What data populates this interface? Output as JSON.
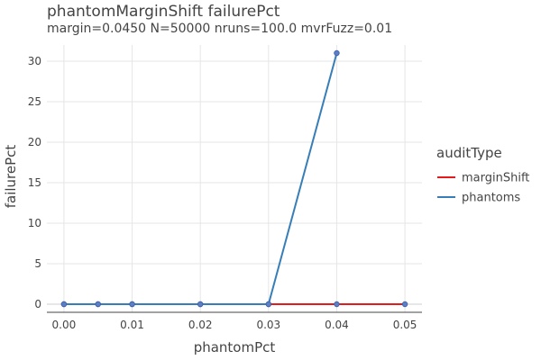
{
  "chart_data": {
    "type": "line",
    "title": "phantomMarginShift failurePct",
    "subtitle": "margin=0.0450 N=50000 nruns=100.0 mvrFuzz=0.01",
    "xlabel": "phantomPct",
    "ylabel": "failurePct",
    "xlim": [
      -0.0025,
      0.0525
    ],
    "ylim": [
      -1,
      32
    ],
    "xticks": [
      0.0,
      0.01,
      0.02,
      0.03,
      0.04,
      0.05
    ],
    "xtick_labels": [
      "0.00",
      "0.01",
      "0.02",
      "0.03",
      "0.04",
      "0.05"
    ],
    "yticks": [
      0,
      5,
      10,
      15,
      20,
      25,
      30
    ],
    "ytick_labels": [
      "0",
      "5",
      "10",
      "15",
      "20",
      "25",
      "30"
    ],
    "grid": true,
    "legend": {
      "title": "auditType",
      "placement": "right"
    },
    "series": [
      {
        "name": "marginShift",
        "color": "#e41a1c",
        "x": [
          0.0,
          0.005,
          0.01,
          0.02,
          0.03,
          0.04,
          0.05
        ],
        "y": [
          0,
          0,
          0,
          0,
          0,
          0,
          0
        ]
      },
      {
        "name": "phantoms",
        "color": "#377eb8",
        "x": [
          0.0,
          0.005,
          0.01,
          0.02,
          0.03,
          0.04
        ],
        "y": [
          0,
          0,
          0,
          0,
          0,
          31
        ]
      }
    ]
  }
}
